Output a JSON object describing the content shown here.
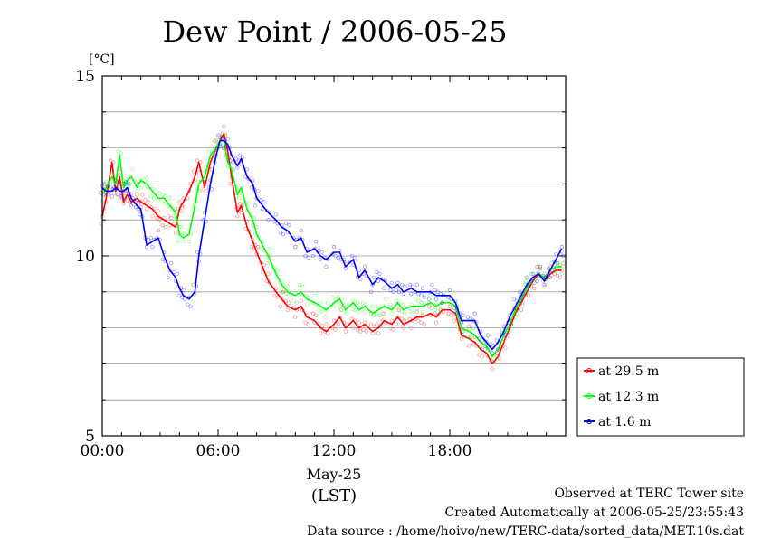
{
  "chart_data": {
    "type": "line",
    "title": "Dew Point / 2006-05-25",
    "ylabel": "[°C]",
    "ylim": [
      5,
      15
    ],
    "y_ticks": [
      "5",
      "10",
      "15"
    ],
    "xlim": [
      0,
      24
    ],
    "x_ticks": [
      "00:00",
      "06:00",
      "12:00",
      "18:00"
    ],
    "x_date_label": "May-25",
    "x_tz_label": "(LST)",
    "grid": true,
    "legend_placement": "right-bottom",
    "series": [
      {
        "name": "at 29.5 m",
        "color": "#ff0000",
        "x": [
          0.0,
          0.2,
          0.5,
          0.7,
          0.9,
          1.1,
          1.3,
          1.5,
          1.8,
          2.0,
          2.3,
          2.6,
          2.9,
          3.2,
          3.5,
          3.8,
          4.0,
          4.2,
          4.5,
          4.8,
          5.0,
          5.3,
          5.6,
          5.9,
          6.1,
          6.3,
          6.5,
          6.7,
          7.0,
          7.2,
          7.5,
          7.8,
          8.0,
          8.3,
          8.6,
          9.0,
          9.3,
          9.6,
          10.0,
          10.3,
          10.6,
          11.0,
          11.3,
          11.6,
          12.0,
          12.3,
          12.6,
          13.0,
          13.3,
          13.6,
          14.0,
          14.3,
          14.6,
          15.0,
          15.3,
          15.6,
          16.0,
          16.3,
          16.6,
          17.0,
          17.3,
          17.6,
          18.0,
          18.3,
          18.6,
          19.0,
          19.3,
          19.6,
          19.9,
          20.2,
          20.5,
          20.8,
          21.1,
          21.4,
          21.7,
          22.0,
          22.3,
          22.6,
          22.9,
          23.2,
          23.5,
          23.8
        ],
        "y": [
          11.1,
          11.6,
          12.6,
          11.8,
          12.2,
          11.5,
          11.7,
          11.5,
          11.6,
          11.5,
          11.4,
          11.3,
          11.1,
          11.0,
          10.9,
          10.8,
          11.3,
          11.5,
          11.8,
          12.2,
          12.6,
          11.9,
          12.6,
          13.0,
          13.2,
          13.4,
          12.9,
          12.2,
          11.2,
          11.4,
          10.8,
          10.4,
          10.1,
          9.7,
          9.3,
          9.0,
          8.8,
          8.6,
          8.5,
          8.6,
          8.3,
          8.2,
          8.0,
          7.9,
          8.1,
          8.3,
          8.0,
          8.2,
          8.0,
          8.1,
          7.9,
          8.0,
          8.2,
          8.1,
          8.3,
          8.1,
          8.2,
          8.3,
          8.3,
          8.4,
          8.3,
          8.5,
          8.5,
          8.4,
          7.8,
          7.7,
          7.6,
          7.4,
          7.3,
          7.0,
          7.2,
          7.6,
          8.0,
          8.4,
          8.7,
          9.0,
          9.3,
          9.5,
          9.3,
          9.5,
          9.6,
          9.6
        ]
      },
      {
        "name": "at 12.3 m",
        "color": "#00ff00",
        "x": [
          0.0,
          0.2,
          0.5,
          0.7,
          0.9,
          1.1,
          1.3,
          1.5,
          1.8,
          2.0,
          2.3,
          2.6,
          2.9,
          3.2,
          3.5,
          3.8,
          4.0,
          4.2,
          4.5,
          4.8,
          5.0,
          5.3,
          5.6,
          5.9,
          6.1,
          6.3,
          6.5,
          6.7,
          7.0,
          7.2,
          7.5,
          7.8,
          8.0,
          8.3,
          8.6,
          9.0,
          9.3,
          9.6,
          10.0,
          10.3,
          10.6,
          11.0,
          11.3,
          11.6,
          12.0,
          12.3,
          12.6,
          13.0,
          13.3,
          13.6,
          14.0,
          14.3,
          14.6,
          15.0,
          15.3,
          15.6,
          16.0,
          16.3,
          16.6,
          17.0,
          17.3,
          17.6,
          18.0,
          18.3,
          18.6,
          19.0,
          19.3,
          19.6,
          19.9,
          20.2,
          20.5,
          20.8,
          21.1,
          21.4,
          21.7,
          22.0,
          22.3,
          22.6,
          22.9,
          23.2,
          23.5,
          23.8
        ],
        "y": [
          11.7,
          11.9,
          12.2,
          12.0,
          12.8,
          11.9,
          12.1,
          12.2,
          11.9,
          12.1,
          12.0,
          11.8,
          11.6,
          11.6,
          11.4,
          11.2,
          10.6,
          10.5,
          10.6,
          11.4,
          12.0,
          12.2,
          12.8,
          13.0,
          13.2,
          13.2,
          12.6,
          12.4,
          11.7,
          11.9,
          11.3,
          11.0,
          10.6,
          10.3,
          10.0,
          9.5,
          9.2,
          9.0,
          8.9,
          9.0,
          8.8,
          8.7,
          8.6,
          8.5,
          8.7,
          8.8,
          8.5,
          8.7,
          8.5,
          8.6,
          8.4,
          8.5,
          8.6,
          8.5,
          8.7,
          8.5,
          8.6,
          8.6,
          8.6,
          8.7,
          8.6,
          8.7,
          8.7,
          8.6,
          8.0,
          7.9,
          7.8,
          7.6,
          7.5,
          7.2,
          7.4,
          7.8,
          8.1,
          8.5,
          8.8,
          9.1,
          9.4,
          9.5,
          9.4,
          9.6,
          9.7,
          9.7
        ]
      },
      {
        "name": "at 1.6 m",
        "color": "#0000ff",
        "x": [
          0.0,
          0.2,
          0.5,
          0.7,
          0.9,
          1.1,
          1.3,
          1.5,
          1.8,
          2.0,
          2.3,
          2.6,
          2.9,
          3.2,
          3.5,
          3.8,
          4.0,
          4.2,
          4.5,
          4.8,
          5.0,
          5.3,
          5.6,
          5.9,
          6.1,
          6.3,
          6.5,
          6.7,
          7.0,
          7.2,
          7.5,
          7.8,
          8.0,
          8.3,
          8.6,
          9.0,
          9.3,
          9.6,
          10.0,
          10.3,
          10.6,
          11.0,
          11.3,
          11.6,
          12.0,
          12.3,
          12.6,
          13.0,
          13.3,
          13.6,
          14.0,
          14.3,
          14.6,
          15.0,
          15.3,
          15.6,
          16.0,
          16.3,
          16.6,
          17.0,
          17.3,
          17.6,
          18.0,
          18.3,
          18.6,
          19.0,
          19.3,
          19.6,
          19.9,
          20.2,
          20.5,
          20.8,
          21.1,
          21.4,
          21.7,
          22.0,
          22.3,
          22.6,
          22.9,
          23.2,
          23.5,
          23.8
        ],
        "y": [
          11.9,
          11.8,
          11.8,
          11.9,
          11.8,
          11.8,
          11.9,
          11.6,
          11.4,
          11.3,
          10.3,
          10.4,
          10.5,
          10.0,
          9.6,
          9.4,
          9.1,
          8.9,
          8.8,
          9.0,
          10.0,
          11.0,
          12.0,
          12.8,
          13.2,
          13.2,
          13.1,
          12.8,
          12.5,
          12.7,
          12.2,
          12.0,
          11.6,
          11.4,
          11.2,
          11.0,
          10.8,
          10.7,
          10.4,
          10.5,
          10.1,
          10.2,
          10.0,
          9.9,
          10.1,
          10.1,
          9.7,
          9.9,
          9.4,
          9.6,
          9.2,
          9.4,
          9.3,
          9.1,
          9.2,
          9.0,
          9.1,
          9.0,
          9.0,
          9.0,
          8.9,
          8.9,
          8.9,
          8.7,
          8.2,
          8.2,
          8.2,
          7.8,
          7.6,
          7.4,
          7.6,
          7.9,
          8.3,
          8.6,
          8.9,
          9.2,
          9.4,
          9.5,
          9.3,
          9.6,
          9.9,
          10.2
        ]
      }
    ]
  },
  "footer": {
    "line1": "Observed at TERC Tower site",
    "line2": "Created Automatically at 2006-05-25/23:55:43",
    "line3": "Data source : /home/hoivo/new/TERC-data/sorted_data/MET.10s.dat"
  }
}
